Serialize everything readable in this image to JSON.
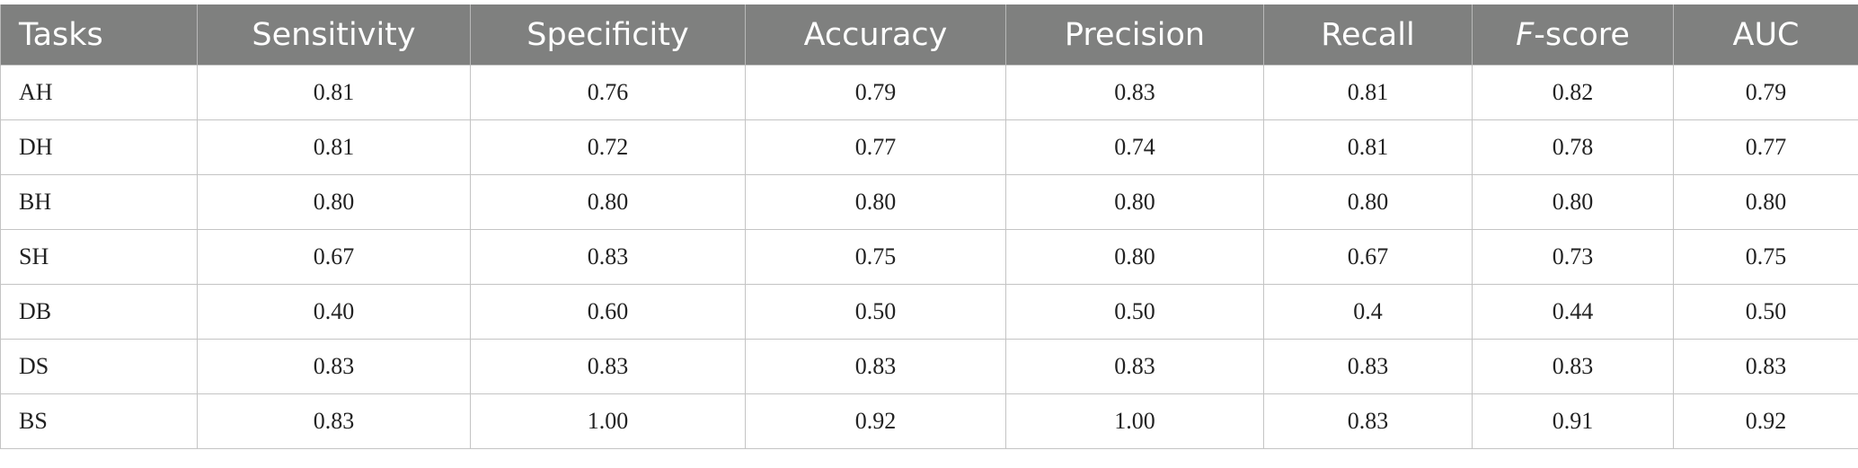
{
  "table": {
    "headers": {
      "tasks": "Tasks",
      "sensitivity": "Sensitivity",
      "specificity": "Specificity",
      "accuracy": "Accuracy",
      "precision": "Precision",
      "recall": "Recall",
      "fscore_italic": "F",
      "fscore_rest": "-score",
      "auc": "AUC"
    },
    "rows": [
      [
        "AH",
        "0.81",
        "0.76",
        "0.79",
        "0.83",
        "0.81",
        "0.82",
        "0.79"
      ],
      [
        "DH",
        "0.81",
        "0.72",
        "0.77",
        "0.74",
        "0.81",
        "0.78",
        "0.77"
      ],
      [
        "BH",
        "0.80",
        "0.80",
        "0.80",
        "0.80",
        "0.80",
        "0.80",
        "0.80"
      ],
      [
        "SH",
        "0.67",
        "0.83",
        "0.75",
        "0.80",
        "0.67",
        "0.73",
        "0.75"
      ],
      [
        "DB",
        "0.40",
        "0.60",
        "0.50",
        "0.50",
        "0.4",
        "0.44",
        "0.50"
      ],
      [
        "DS",
        "0.83",
        "0.83",
        "0.83",
        "0.83",
        "0.83",
        "0.83",
        "0.83"
      ],
      [
        "BS",
        "0.83",
        "1.00",
        "0.92",
        "1.00",
        "0.83",
        "0.91",
        "0.92"
      ]
    ]
  }
}
